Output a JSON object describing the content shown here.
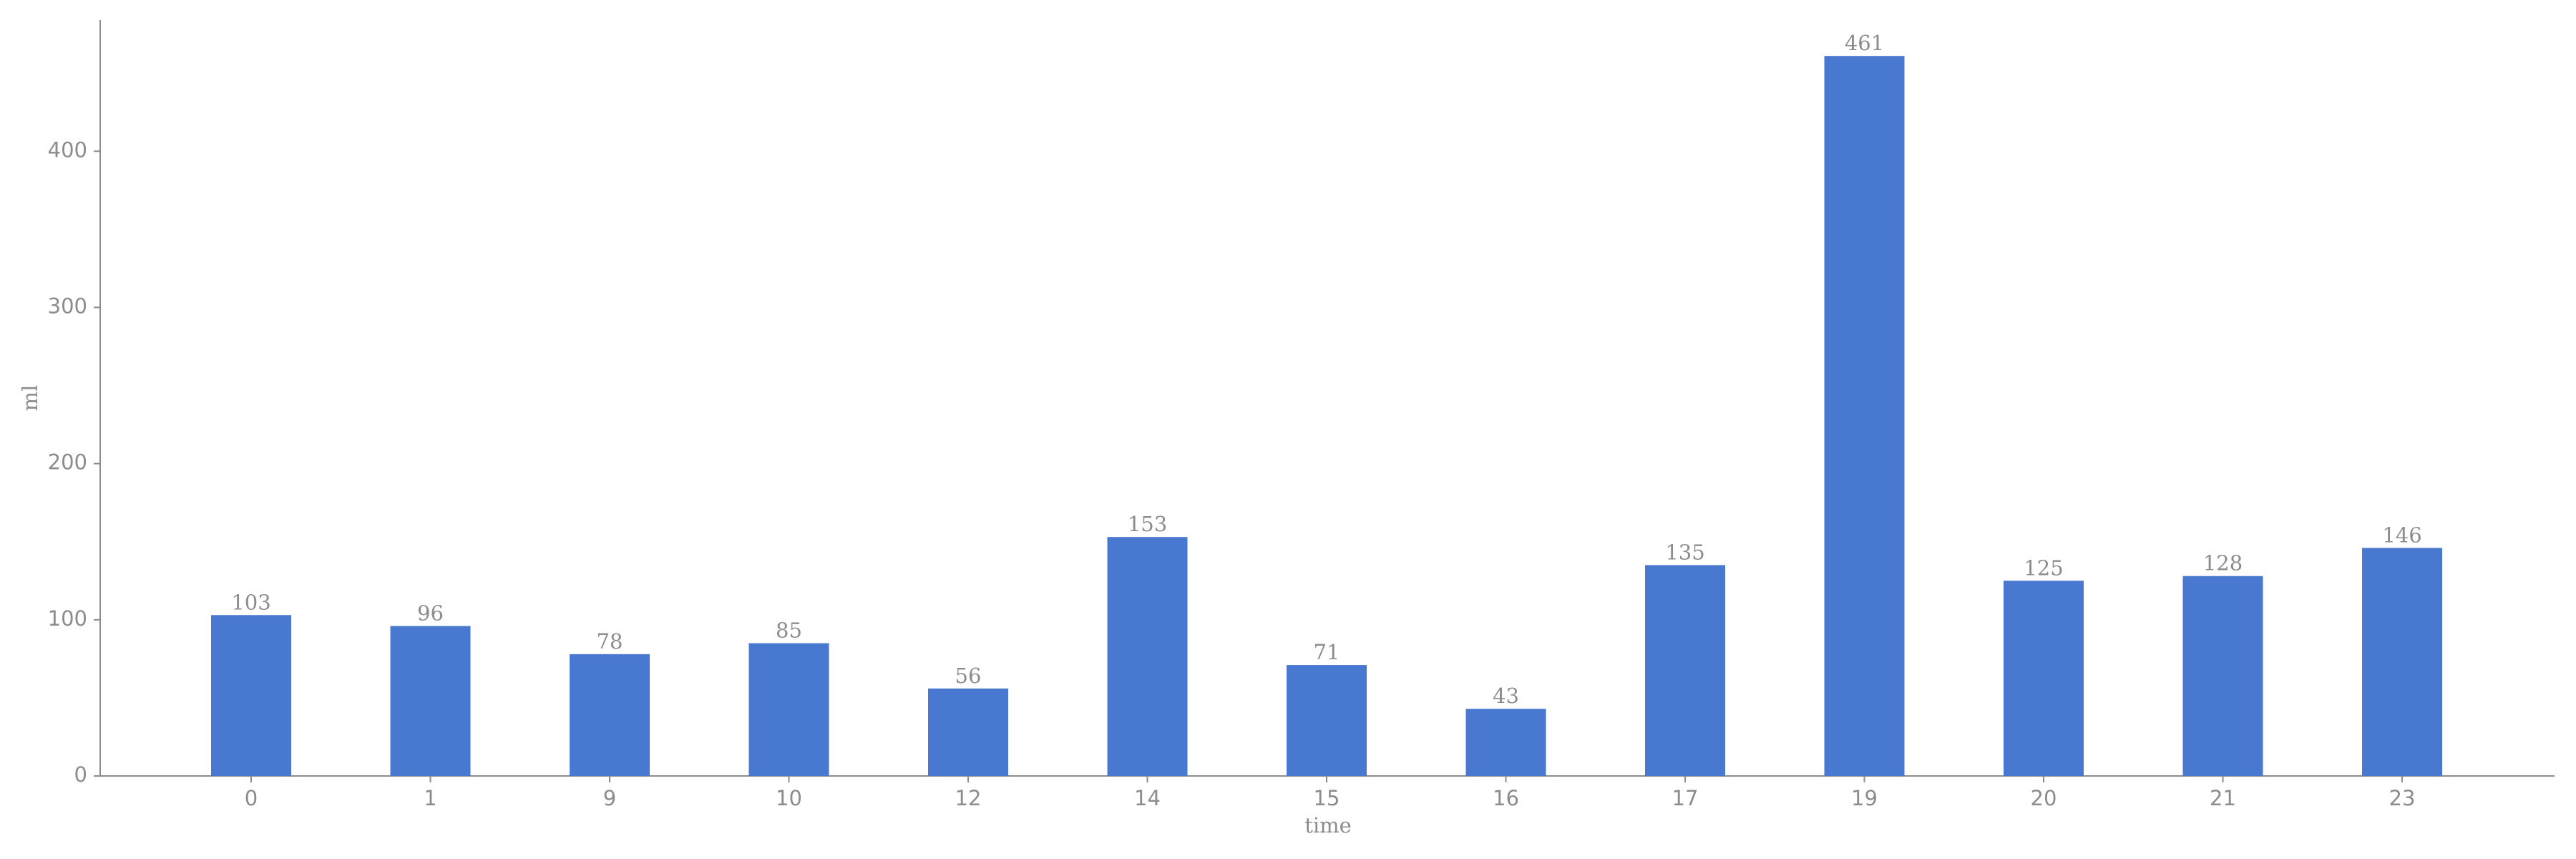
{
  "chart_data": {
    "type": "bar",
    "x_label": "time",
    "y_label": "ml",
    "categories": [
      "0",
      "1",
      "9",
      "10",
      "12",
      "14",
      "15",
      "16",
      "17",
      "19",
      "20",
      "21",
      "23"
    ],
    "values": [
      103,
      96,
      78,
      85,
      56,
      153,
      71,
      43,
      135,
      461,
      125,
      128,
      146
    ],
    "color": "#4878d0",
    "ylim": [
      0,
      484
    ],
    "yticks": [
      0,
      100,
      200,
      300,
      400
    ],
    "grid": false
  }
}
